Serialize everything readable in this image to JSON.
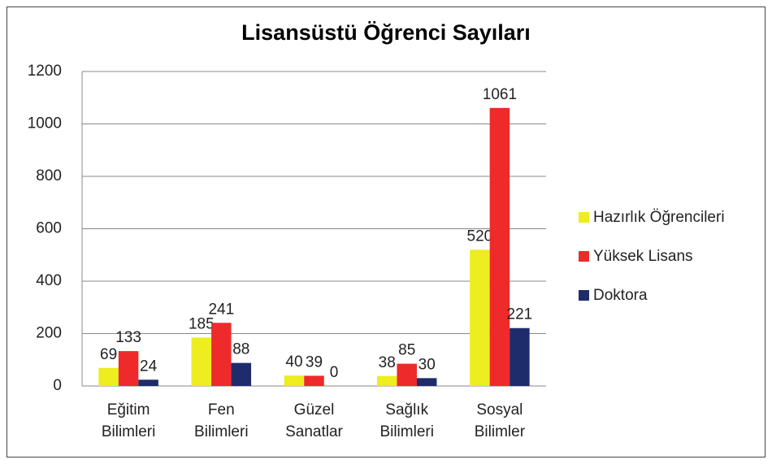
{
  "chart_data": {
    "type": "bar",
    "title": "Lisansüstü Öğrenci Sayıları",
    "categories": [
      "Eğitim Bilimleri",
      "Fen Bilimleri",
      "Güzel Sanatlar",
      "Sağlık Bilimleri",
      "Sosyal Bilimler"
    ],
    "series": [
      {
        "name": "Hazırlık Öğrencileri",
        "color": "#eded1f",
        "values": [
          69,
          185,
          40,
          38,
          520
        ]
      },
      {
        "name": "Yüksek Lisans",
        "color": "#ee2a2a",
        "values": [
          133,
          241,
          39,
          85,
          1061
        ]
      },
      {
        "name": "Doktora",
        "color": "#1f2c6c",
        "values": [
          24,
          88,
          0,
          30,
          221
        ]
      }
    ],
    "ylim": [
      0,
      1200
    ],
    "yticks": [
      0,
      200,
      400,
      600,
      800,
      1000,
      1200
    ],
    "grid": true,
    "legend": "right"
  }
}
